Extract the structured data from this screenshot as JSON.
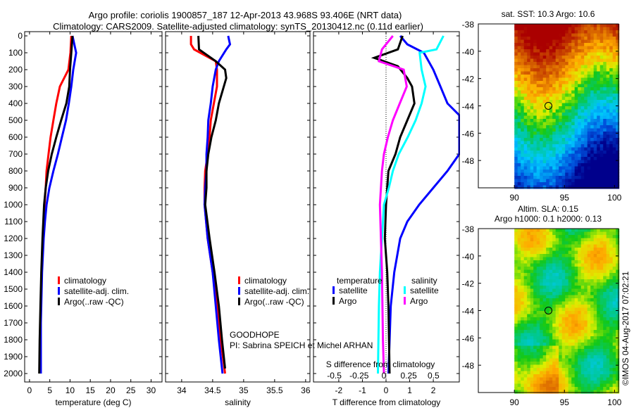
{
  "title": {
    "line1": "Argo profile: coriolis 1900857_187 12-Apr-2013 43.968S 93.406E (NRT data)",
    "line2": "Climatology: CARS2009. Satellite-adjusted climatology: synTS_20130412.nc (0.11d earlier)"
  },
  "credit": "©IMOS 04-Aug-2017 07:02:21",
  "annotation": {
    "line1": "GOODHOPE",
    "line2": "PI: Sabrina SPEICH et Michel ARHAN"
  },
  "colors": {
    "climatology": "#ff0000",
    "satellite": "#0000ff",
    "argo": "#000000",
    "argo_salinity": "#ff00ff",
    "satellite_salinity": "#00ffff"
  },
  "chart_data": [
    {
      "type": "line",
      "name": "temperature",
      "xlabel": "temperature (deg C)",
      "xlim": [
        -1.2,
        32.7
      ],
      "xticks": [
        0,
        5,
        10,
        15,
        20,
        25,
        30
      ],
      "ylim": [
        2050,
        -25
      ],
      "yticks": [
        0,
        100,
        200,
        300,
        400,
        500,
        600,
        700,
        800,
        900,
        1000,
        1100,
        1200,
        1300,
        1400,
        1500,
        1600,
        1700,
        1800,
        1900,
        2000
      ],
      "legend": [
        "climatology",
        "satellite-adj. clim.",
        "Argo(..raw -QC)"
      ],
      "series": [
        {
          "name": "climatology",
          "color": "#ff0000",
          "depth": [
            0,
            100,
            200,
            300,
            400,
            500,
            600,
            700,
            800,
            900,
            1000,
            1200,
            1400,
            1600,
            1800,
            2000
          ],
          "values": [
            10.3,
            10.1,
            9.6,
            7.5,
            6.6,
            5.9,
            5.2,
            4.7,
            4.2,
            4.0,
            3.7,
            3.3,
            3.0,
            2.8,
            2.6,
            2.6
          ]
        },
        {
          "name": "satellite-adj. clim.",
          "color": "#0000ff",
          "depth": [
            0,
            100,
            200,
            300,
            400,
            500,
            600,
            700,
            800,
            900,
            1000,
            1100,
            1200,
            1400,
            1700,
            2000
          ],
          "values": [
            10.6,
            11.5,
            10.8,
            10.3,
            9.7,
            9.0,
            8.0,
            7.0,
            5.9,
            4.9,
            4.2,
            3.8,
            3.5,
            3.1,
            2.8,
            2.8
          ]
        },
        {
          "name": "Argo(..raw -QC)",
          "color": "#000000",
          "depth": [
            0,
            100,
            200,
            300,
            400,
            500,
            600,
            700,
            800,
            900,
            1000,
            1200,
            1400,
            1600,
            1800,
            2000
          ],
          "values": [
            10.6,
            10.3,
            10.0,
            9.8,
            9.1,
            7.8,
            6.6,
            5.5,
            4.6,
            4.0,
            3.6,
            3.2,
            2.9,
            2.7,
            2.5,
            2.4
          ]
        }
      ]
    },
    {
      "type": "line",
      "name": "salinity",
      "xlabel": "salinity",
      "xlim": [
        33.74,
        36.07
      ],
      "xticks": [
        34,
        34.5,
        35,
        35.5,
        36
      ],
      "ylim": [
        2050,
        -25
      ],
      "legend": [
        "climatology",
        "satellite-adj. clim.",
        "Argo(..raw -QC)"
      ],
      "series": [
        {
          "name": "climatology",
          "color": "#ff0000",
          "depth": [
            0,
            50,
            80,
            150,
            200,
            300,
            400,
            500,
            600,
            700,
            800,
            900,
            1000,
            1200,
            1400,
            1600,
            1800,
            2000
          ],
          "values": [
            34.15,
            34.15,
            34.2,
            34.55,
            34.57,
            34.57,
            34.52,
            34.47,
            34.45,
            34.42,
            34.38,
            34.37,
            34.37,
            34.42,
            34.5,
            34.57,
            34.63,
            34.7
          ]
        },
        {
          "name": "satellite-adj. clim.",
          "color": "#0000ff",
          "depth": [
            0,
            50,
            80,
            150,
            200,
            300,
            400,
            500,
            600,
            700,
            800,
            900,
            1000,
            1200,
            1400,
            1600,
            1800,
            2000
          ],
          "values": [
            34.75,
            34.78,
            34.72,
            34.6,
            34.55,
            34.5,
            34.47,
            34.43,
            34.42,
            34.4,
            34.4,
            34.38,
            34.37,
            34.42,
            34.5,
            34.55,
            34.6,
            34.66
          ]
        },
        {
          "name": "Argo(..raw -QC)",
          "color": "#000000",
          "depth": [
            0,
            80,
            150,
            200,
            250,
            300,
            400,
            500,
            600,
            700,
            800,
            900,
            1000,
            1200,
            1400,
            1600,
            1800,
            1970
          ],
          "values": [
            34.27,
            34.28,
            34.55,
            34.7,
            34.72,
            34.68,
            34.6,
            34.55,
            34.48,
            34.43,
            34.4,
            34.4,
            34.38,
            34.45,
            34.53,
            34.6,
            34.65,
            34.7
          ]
        }
      ]
    },
    {
      "type": "line",
      "name": "differences",
      "xlabel": "T difference from climatology",
      "xlabel2": "S difference from climatology",
      "xlim": [
        -3.07,
        3.1
      ],
      "xticks": [
        -2,
        -1,
        0,
        1,
        2
      ],
      "xlim2": [
        -0.71,
        0.76
      ],
      "xticks2": [
        -0.5,
        -0.25,
        0,
        0.25,
        0.5
      ],
      "ylim": [
        2050,
        -25
      ],
      "legend_temperature": {
        "title": "temperature",
        "items": [
          "satellite",
          "Argo"
        ]
      },
      "legend_salinity": {
        "title": "salinity",
        "items": [
          "satellite",
          "Argo"
        ]
      },
      "series": [
        {
          "name": "temperature satellite",
          "axis": "T",
          "color": "#0000ff",
          "depth": [
            0,
            50,
            100,
            200,
            300,
            400,
            470,
            700,
            800,
            900,
            1000,
            1100,
            1200,
            1400,
            1600,
            2000
          ],
          "values": [
            0.6,
            0.9,
            1.6,
            2.0,
            2.3,
            2.6,
            3.1,
            3.1,
            2.6,
            2.0,
            1.4,
            0.9,
            0.6,
            0.35,
            0.2,
            0.1
          ]
        },
        {
          "name": "temperature Argo",
          "axis": "T",
          "color": "#000000",
          "depth": [
            0,
            80,
            130,
            180,
            250,
            300,
            400,
            500,
            600,
            700,
            800,
            1000,
            1200,
            1400,
            1600,
            2000
          ],
          "values": [
            0.7,
            0.5,
            -0.5,
            0.5,
            0.9,
            1.1,
            1.2,
            0.9,
            0.6,
            0.4,
            0.1,
            0.0,
            -0.05,
            0.05,
            0.1,
            0.15
          ]
        },
        {
          "name": "salinity satellite",
          "axis": "S",
          "color": "#00ffff",
          "depth": [
            0,
            80,
            100,
            200,
            300,
            400,
            500,
            600,
            700,
            800,
            900,
            1000,
            1200,
            1400,
            1600,
            2000
          ],
          "values": [
            0.6,
            0.53,
            0.36,
            0.38,
            0.42,
            0.38,
            0.32,
            0.24,
            0.15,
            0.09,
            0.05,
            0.0,
            -0.02,
            -0.04,
            -0.05,
            -0.06
          ]
        },
        {
          "name": "salinity Argo",
          "axis": "S",
          "color": "#ff00ff",
          "depth": [
            0,
            80,
            150,
            200,
            300,
            400,
            500,
            600,
            700,
            800,
            1000,
            1400,
            1800,
            2000
          ],
          "values": [
            0.09,
            -0.02,
            -0.05,
            0.2,
            0.23,
            0.16,
            0.09,
            0.04,
            0.0,
            -0.02,
            -0.04,
            -0.02,
            -0.01,
            0.0
          ]
        }
      ]
    },
    {
      "type": "heatmap",
      "name": "sst-map",
      "title": "sat. SST: 10.3 Argo: 10.6",
      "xlim": [
        86.4,
        100.4
      ],
      "ylim": [
        -50,
        -38
      ],
      "xticks": [
        90,
        95,
        100
      ],
      "yticks": [
        -38,
        -40,
        -42,
        -44,
        -46,
        -48
      ],
      "marker": {
        "lon": 93.4,
        "lat": -44.0
      }
    },
    {
      "type": "heatmap",
      "name": "sla-map",
      "title": "Altim. SLA: 0.15",
      "subtitle": "Argo h1000: 0.1 h2000: 0.13",
      "xlim": [
        86.4,
        100.4
      ],
      "ylim": [
        -50,
        -38
      ],
      "xticks": [
        90,
        95,
        100
      ],
      "yticks": [
        -38,
        -40,
        -42,
        -44,
        -46,
        -48
      ],
      "marker": {
        "lon": 93.4,
        "lat": -44.0
      }
    }
  ]
}
